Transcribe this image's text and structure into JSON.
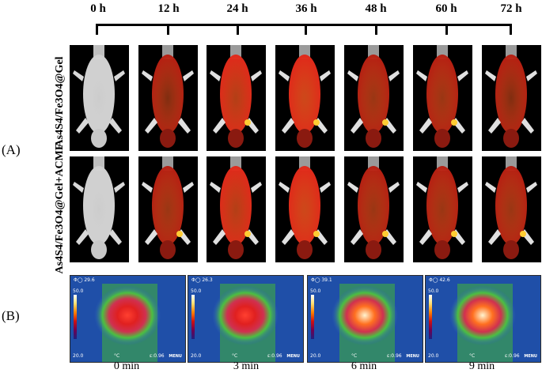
{
  "panels": {
    "a_label": "(A)",
    "b_label": "(B)"
  },
  "timeline": {
    "labels": [
      "0 h",
      "12 h",
      "24 h",
      "36 h",
      "48 h",
      "60 h",
      "72 h"
    ]
  },
  "rows": {
    "row1_label": "As4S4/Fe3O4@Gel",
    "row2_label": "As4S4/Fe3O4@Gel+ACMF"
  },
  "thermal": {
    "readouts": [
      "Φ◯ 29.6",
      "Φ◯ 26.3",
      "Φ◯ 39.1",
      "Φ◯ 42.6"
    ],
    "scale_max": "50.0",
    "scale_min": "20.0",
    "unit": "°C",
    "emissivity": "ε:0.96",
    "menu": "MENU",
    "time_labels": [
      "0 min",
      "3 min",
      "6 min",
      "9 min"
    ]
  }
}
